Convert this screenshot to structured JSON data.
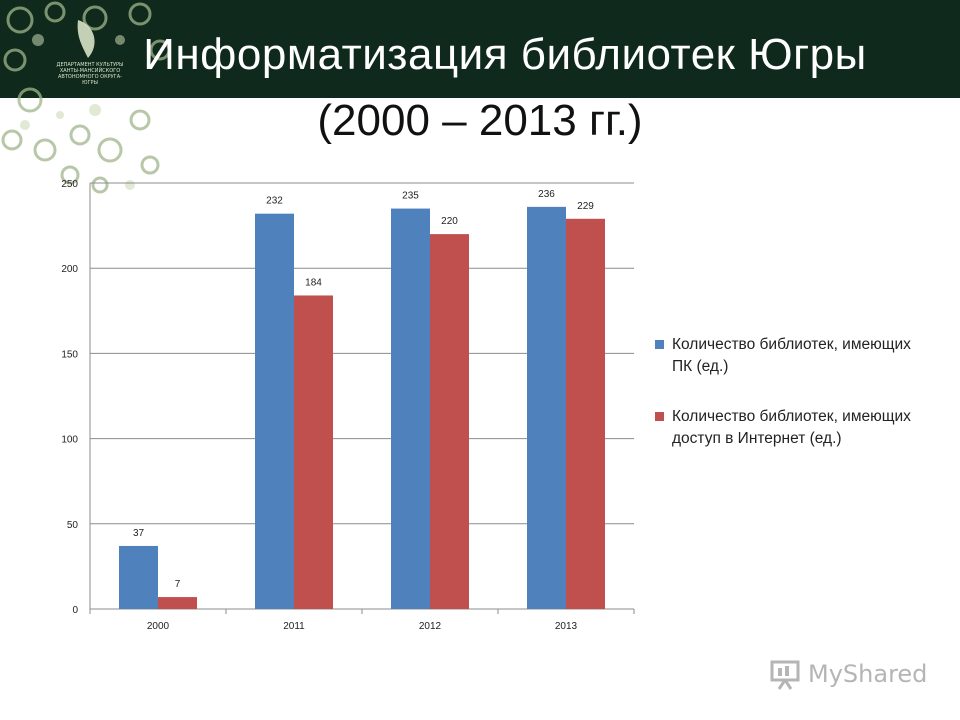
{
  "slide": {
    "title_line1": "Информатизация библиотек Югры",
    "title_line2": "(2000 – 2013 гг.)",
    "logo_text": "ДЕПАРТАМЕНТ КУЛЬТУРЫ ХАНТЫ-МАНСИЙСКОГО АВТОНОМНОГО ОКРУГА-ЮГРЫ",
    "watermark": "MyShared"
  },
  "colors": {
    "header_bg": "#0f2a1c",
    "series_pc": "#4f81bd",
    "series_internet": "#c0504d"
  },
  "chart_data": {
    "type": "bar",
    "categories": [
      "2000",
      "2011",
      "2012",
      "2013"
    ],
    "series": [
      {
        "name": "Количество библиотек, имеющих ПК (ед.)",
        "values": [
          37,
          232,
          235,
          236
        ],
        "color": "#4f81bd"
      },
      {
        "name": "Количество библиотек, имеющих доступ в Интернет (ед.)",
        "values": [
          7,
          184,
          220,
          229
        ],
        "color": "#c0504d"
      }
    ],
    "y_ticks": [
      "0",
      "50",
      "100",
      "150",
      "200",
      "250"
    ],
    "ylim": [
      0,
      250
    ],
    "grid": true,
    "legend_position": "right",
    "data_labels": true
  }
}
